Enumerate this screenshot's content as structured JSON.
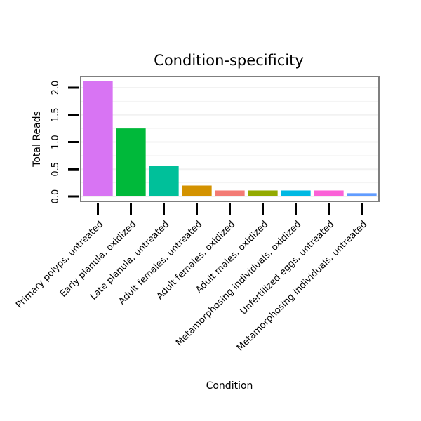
{
  "chart_data": {
    "type": "bar",
    "title": "Condition-specificity",
    "xlabel": "Condition",
    "ylabel": "Total Reads",
    "ylim": [
      0,
      2.2
    ],
    "yticks": [
      "0.0",
      "0.5",
      "1.0",
      "1.5",
      "2.0"
    ],
    "grid": true,
    "categories": [
      "Primary polyps, untreated",
      "Early planula, oxidized",
      "Late planula, untreated",
      "Adult females, untreated",
      "Adult females, oxidized",
      "Adult males, oxidized",
      "Metamorphosing individuals, oxidized",
      "Unfertilized eggs, untreated",
      "Metamorphosing individuals, untreated"
    ],
    "values": [
      2.12,
      1.25,
      0.56,
      0.2,
      0.11,
      0.11,
      0.11,
      0.11,
      0.06
    ],
    "colors": [
      "#d874f3",
      "#00b93a",
      "#00c09a",
      "#d39200",
      "#f37b74",
      "#93aa00",
      "#00b9e3",
      "#fb61d7",
      "#619cff"
    ]
  }
}
